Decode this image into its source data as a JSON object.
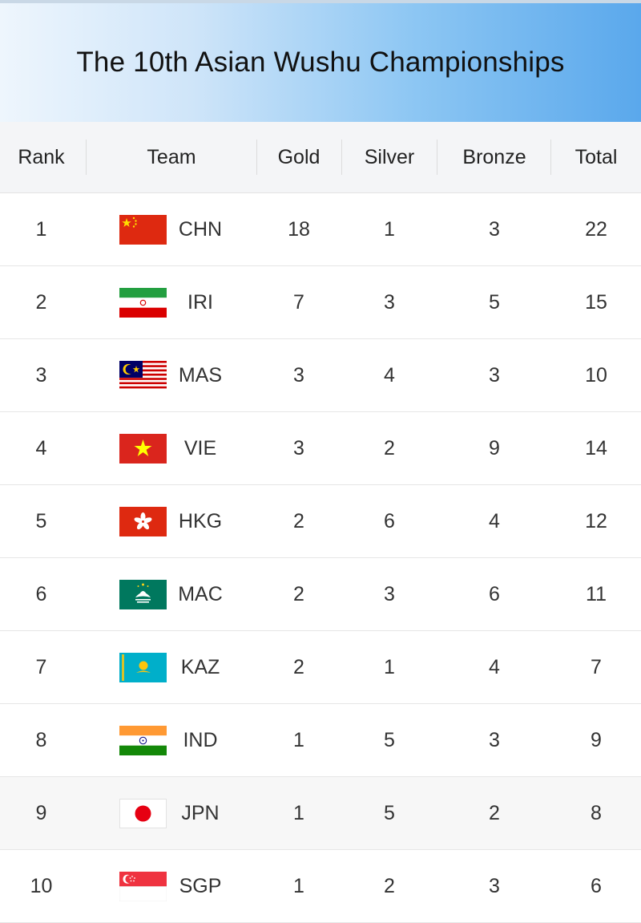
{
  "title": "The 10th Asian Wushu Championships",
  "columns": {
    "rank": "Rank",
    "team": "Team",
    "gold": "Gold",
    "silver": "Silver",
    "bronze": "Bronze",
    "total": "Total"
  },
  "rows": [
    {
      "rank": "1",
      "team": "CHN",
      "gold": "18",
      "silver": "1",
      "bronze": "3",
      "total": "22",
      "flag_icon": "china-flag-icon"
    },
    {
      "rank": "2",
      "team": "IRI",
      "gold": "7",
      "silver": "3",
      "bronze": "5",
      "total": "15",
      "flag_icon": "iran-flag-icon"
    },
    {
      "rank": "3",
      "team": "MAS",
      "gold": "3",
      "silver": "4",
      "bronze": "3",
      "total": "10",
      "flag_icon": "malaysia-flag-icon"
    },
    {
      "rank": "4",
      "team": "VIE",
      "gold": "3",
      "silver": "2",
      "bronze": "9",
      "total": "14",
      "flag_icon": "vietnam-flag-icon"
    },
    {
      "rank": "5",
      "team": "HKG",
      "gold": "2",
      "silver": "6",
      "bronze": "4",
      "total": "12",
      "flag_icon": "hong-kong-flag-icon"
    },
    {
      "rank": "6",
      "team": "MAC",
      "gold": "2",
      "silver": "3",
      "bronze": "6",
      "total": "11",
      "flag_icon": "macau-flag-icon"
    },
    {
      "rank": "7",
      "team": "KAZ",
      "gold": "2",
      "silver": "1",
      "bronze": "4",
      "total": "7",
      "flag_icon": "kazakhstan-flag-icon"
    },
    {
      "rank": "8",
      "team": "IND",
      "gold": "1",
      "silver": "5",
      "bronze": "3",
      "total": "9",
      "flag_icon": "india-flag-icon"
    },
    {
      "rank": "9",
      "team": "JPN",
      "gold": "1",
      "silver": "5",
      "bronze": "2",
      "total": "8",
      "flag_icon": "japan-flag-icon"
    },
    {
      "rank": "10",
      "team": "SGP",
      "gold": "1",
      "silver": "2",
      "bronze": "3",
      "total": "6",
      "flag_icon": "singapore-flag-icon"
    }
  ],
  "colors": {
    "header_gradient_start": "#eef6fd",
    "header_gradient_end": "#5aa8ec",
    "column_header_bg": "#f4f5f7",
    "alt_row_bg": "#f7f7f7"
  }
}
